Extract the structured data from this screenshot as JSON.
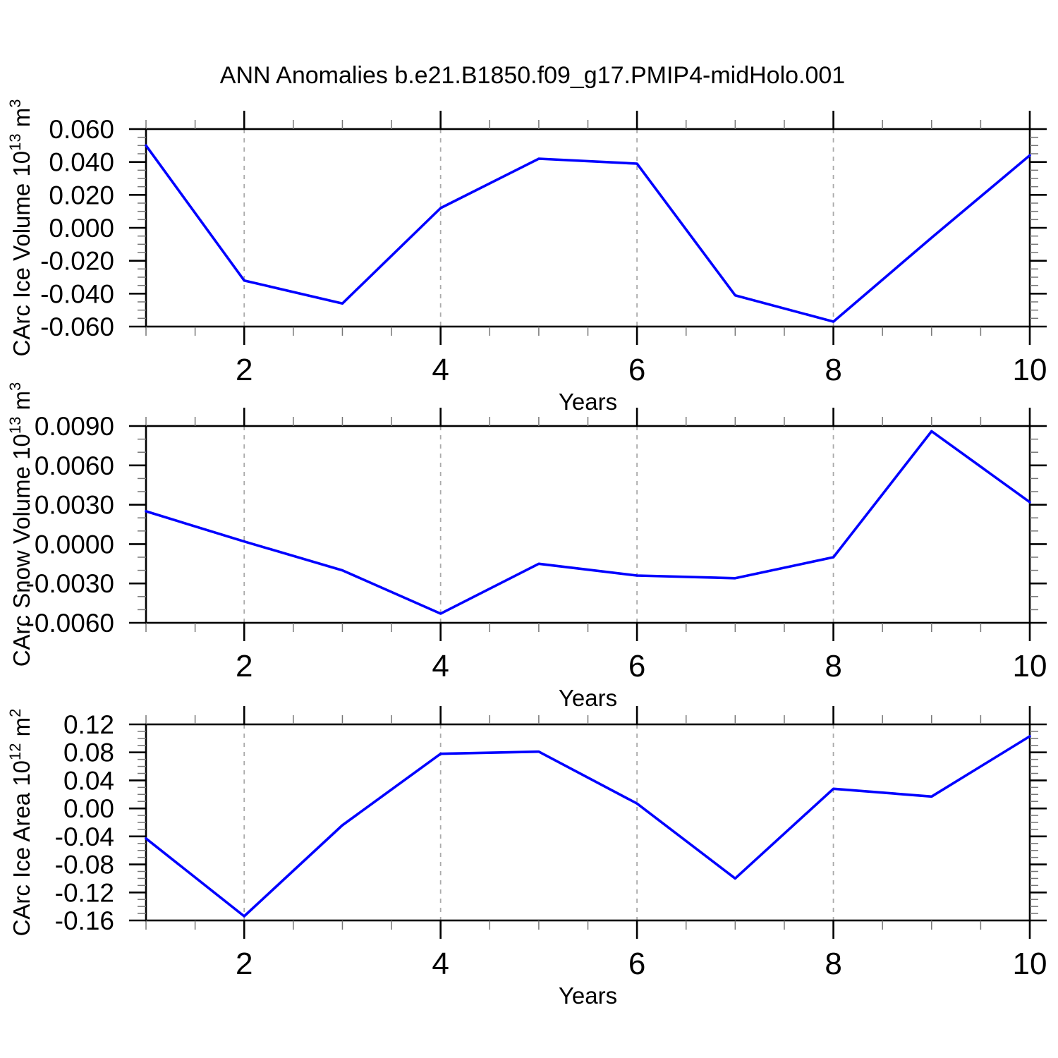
{
  "title": "ANN Anomalies b.e21.B1850.f09_g17.PMIP4-midHolo.001",
  "colors": {
    "line": "#0000ff",
    "axis": "#000000",
    "minor_tick": "#777777",
    "grid": "#aaaaaa",
    "background": "#ffffff"
  },
  "chart_data": [
    {
      "type": "line",
      "title": "",
      "ylabel": "CArc Ice Volume 10^13 m^3",
      "ylabel_parts": [
        {
          "t": "CArc Ice Volume 10"
        },
        {
          "t": "13",
          "sup": true
        },
        {
          "t": " m"
        },
        {
          "t": "3",
          "sup": true
        }
      ],
      "xlabel": "Years",
      "x": [
        1,
        2,
        3,
        4,
        5,
        6,
        7,
        8,
        9,
        10
      ],
      "values": [
        0.05,
        -0.032,
        -0.046,
        0.012,
        0.042,
        0.039,
        -0.041,
        -0.057,
        -0.006,
        0.044
      ],
      "xlim": [
        1,
        10
      ],
      "ylim": [
        -0.06,
        0.06
      ],
      "xtick_values": [
        2,
        4,
        6,
        8,
        10
      ],
      "xtick_labels": [
        "2",
        "4",
        "6",
        "8",
        "10"
      ],
      "x_minor_step": 0.5,
      "ytick_values": [
        0.06,
        0.04,
        0.02,
        0.0,
        -0.02,
        -0.04,
        -0.06
      ],
      "ytick_labels": [
        "0.060",
        "0.040",
        "0.020",
        "0.000",
        "-0.020",
        "-0.040",
        "-0.060"
      ],
      "y_minor_step": 0.005,
      "grid_x": [
        2,
        4,
        6,
        8
      ],
      "grid_style": "dashed-vertical",
      "legend": "none"
    },
    {
      "type": "line",
      "title": "",
      "ylabel": "CArc Snow Volume 10^13 m^3",
      "ylabel_parts": [
        {
          "t": "CArc Snow Volume 10"
        },
        {
          "t": "13",
          "sup": true
        },
        {
          "t": " m"
        },
        {
          "t": "3",
          "sup": true
        }
      ],
      "xlabel": "Years",
      "x": [
        1,
        2,
        3,
        4,
        5,
        6,
        7,
        8,
        9,
        10
      ],
      "values": [
        0.0025,
        0.0002,
        -0.002,
        -0.0053,
        -0.0015,
        -0.0024,
        -0.0026,
        -0.001,
        0.0086,
        0.0032
      ],
      "xlim": [
        1,
        10
      ],
      "ylim": [
        -0.006,
        0.009
      ],
      "xtick_values": [
        2,
        4,
        6,
        8,
        10
      ],
      "xtick_labels": [
        "2",
        "4",
        "6",
        "8",
        "10"
      ],
      "x_minor_step": 0.5,
      "ytick_values": [
        0.009,
        0.006,
        0.003,
        0.0,
        -0.003,
        -0.006
      ],
      "ytick_labels": [
        "0.0090",
        "0.0060",
        "0.0030",
        "0.0000",
        "-0.0030",
        "-0.0060"
      ],
      "y_minor_step": 0.001,
      "grid_x": [
        2,
        4,
        6,
        8
      ],
      "grid_style": "dashed-vertical",
      "legend": "none"
    },
    {
      "type": "line",
      "title": "",
      "ylabel": "CArc Ice Area 10^12 m^2",
      "ylabel_parts": [
        {
          "t": "CArc Ice Area 10"
        },
        {
          "t": "12",
          "sup": true
        },
        {
          "t": " m"
        },
        {
          "t": "2",
          "sup": true
        }
      ],
      "xlabel": "Years",
      "x": [
        1,
        2,
        3,
        4,
        5,
        6,
        7,
        8,
        9,
        10
      ],
      "values": [
        -0.043,
        -0.154,
        -0.024,
        0.078,
        0.081,
        0.007,
        -0.1,
        0.028,
        0.017,
        0.103
      ],
      "xlim": [
        1,
        10
      ],
      "ylim": [
        -0.16,
        0.12
      ],
      "xtick_values": [
        2,
        4,
        6,
        8,
        10
      ],
      "xtick_labels": [
        "2",
        "4",
        "6",
        "8",
        "10"
      ],
      "x_minor_step": 0.5,
      "ytick_values": [
        0.12,
        0.08,
        0.04,
        0.0,
        -0.04,
        -0.08,
        -0.12,
        -0.16
      ],
      "ytick_labels": [
        "0.12",
        "0.08",
        "0.04",
        "0.00",
        "-0.04",
        "-0.08",
        "-0.12",
        "-0.16"
      ],
      "y_minor_step": 0.01,
      "grid_x": [
        2,
        4,
        6,
        8
      ],
      "grid_style": "dashed-vertical",
      "legend": "none"
    }
  ]
}
